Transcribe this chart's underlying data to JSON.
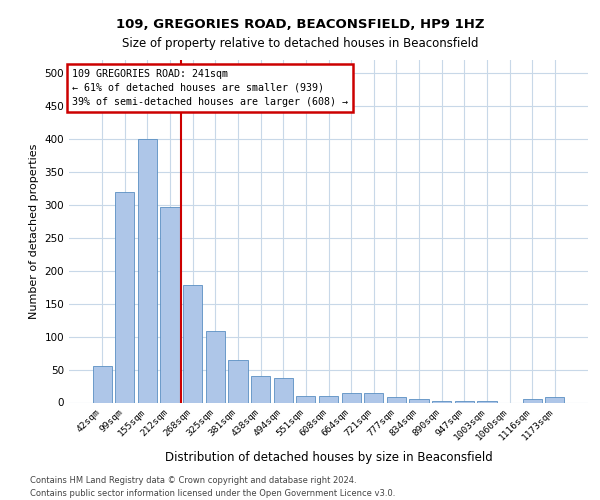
{
  "title1": "109, GREGORIES ROAD, BEACONSFIELD, HP9 1HZ",
  "title2": "Size of property relative to detached houses in Beaconsfield",
  "xlabel": "Distribution of detached houses by size in Beaconsfield",
  "ylabel": "Number of detached properties",
  "footer1": "Contains HM Land Registry data © Crown copyright and database right 2024.",
  "footer2": "Contains public sector information licensed under the Open Government Licence v3.0.",
  "annotation_line1": "109 GREGORIES ROAD: 241sqm",
  "annotation_line2": "← 61% of detached houses are smaller (939)",
  "annotation_line3": "39% of semi-detached houses are larger (608) →",
  "categories": [
    "42sqm",
    "99sqm",
    "155sqm",
    "212sqm",
    "268sqm",
    "325sqm",
    "381sqm",
    "438sqm",
    "494sqm",
    "551sqm",
    "608sqm",
    "664sqm",
    "721sqm",
    "777sqm",
    "834sqm",
    "890sqm",
    "947sqm",
    "1003sqm",
    "1060sqm",
    "1116sqm",
    "1173sqm"
  ],
  "values": [
    55,
    320,
    400,
    297,
    178,
    108,
    65,
    40,
    37,
    10,
    10,
    15,
    15,
    8,
    5,
    2,
    2,
    2,
    0,
    5,
    8
  ],
  "bar_color": "#aec6e8",
  "bar_edge_color": "#5a8fc2",
  "vline_color": "#cc0000",
  "vline_x_idx": 3.5,
  "annotation_box_color": "#cc0000",
  "annotation_fill": "#ffffff",
  "ylim": [
    0,
    520
  ],
  "yticks": [
    0,
    50,
    100,
    150,
    200,
    250,
    300,
    350,
    400,
    450,
    500
  ],
  "bg_color": "#ffffff",
  "grid_color": "#c8d8e8"
}
